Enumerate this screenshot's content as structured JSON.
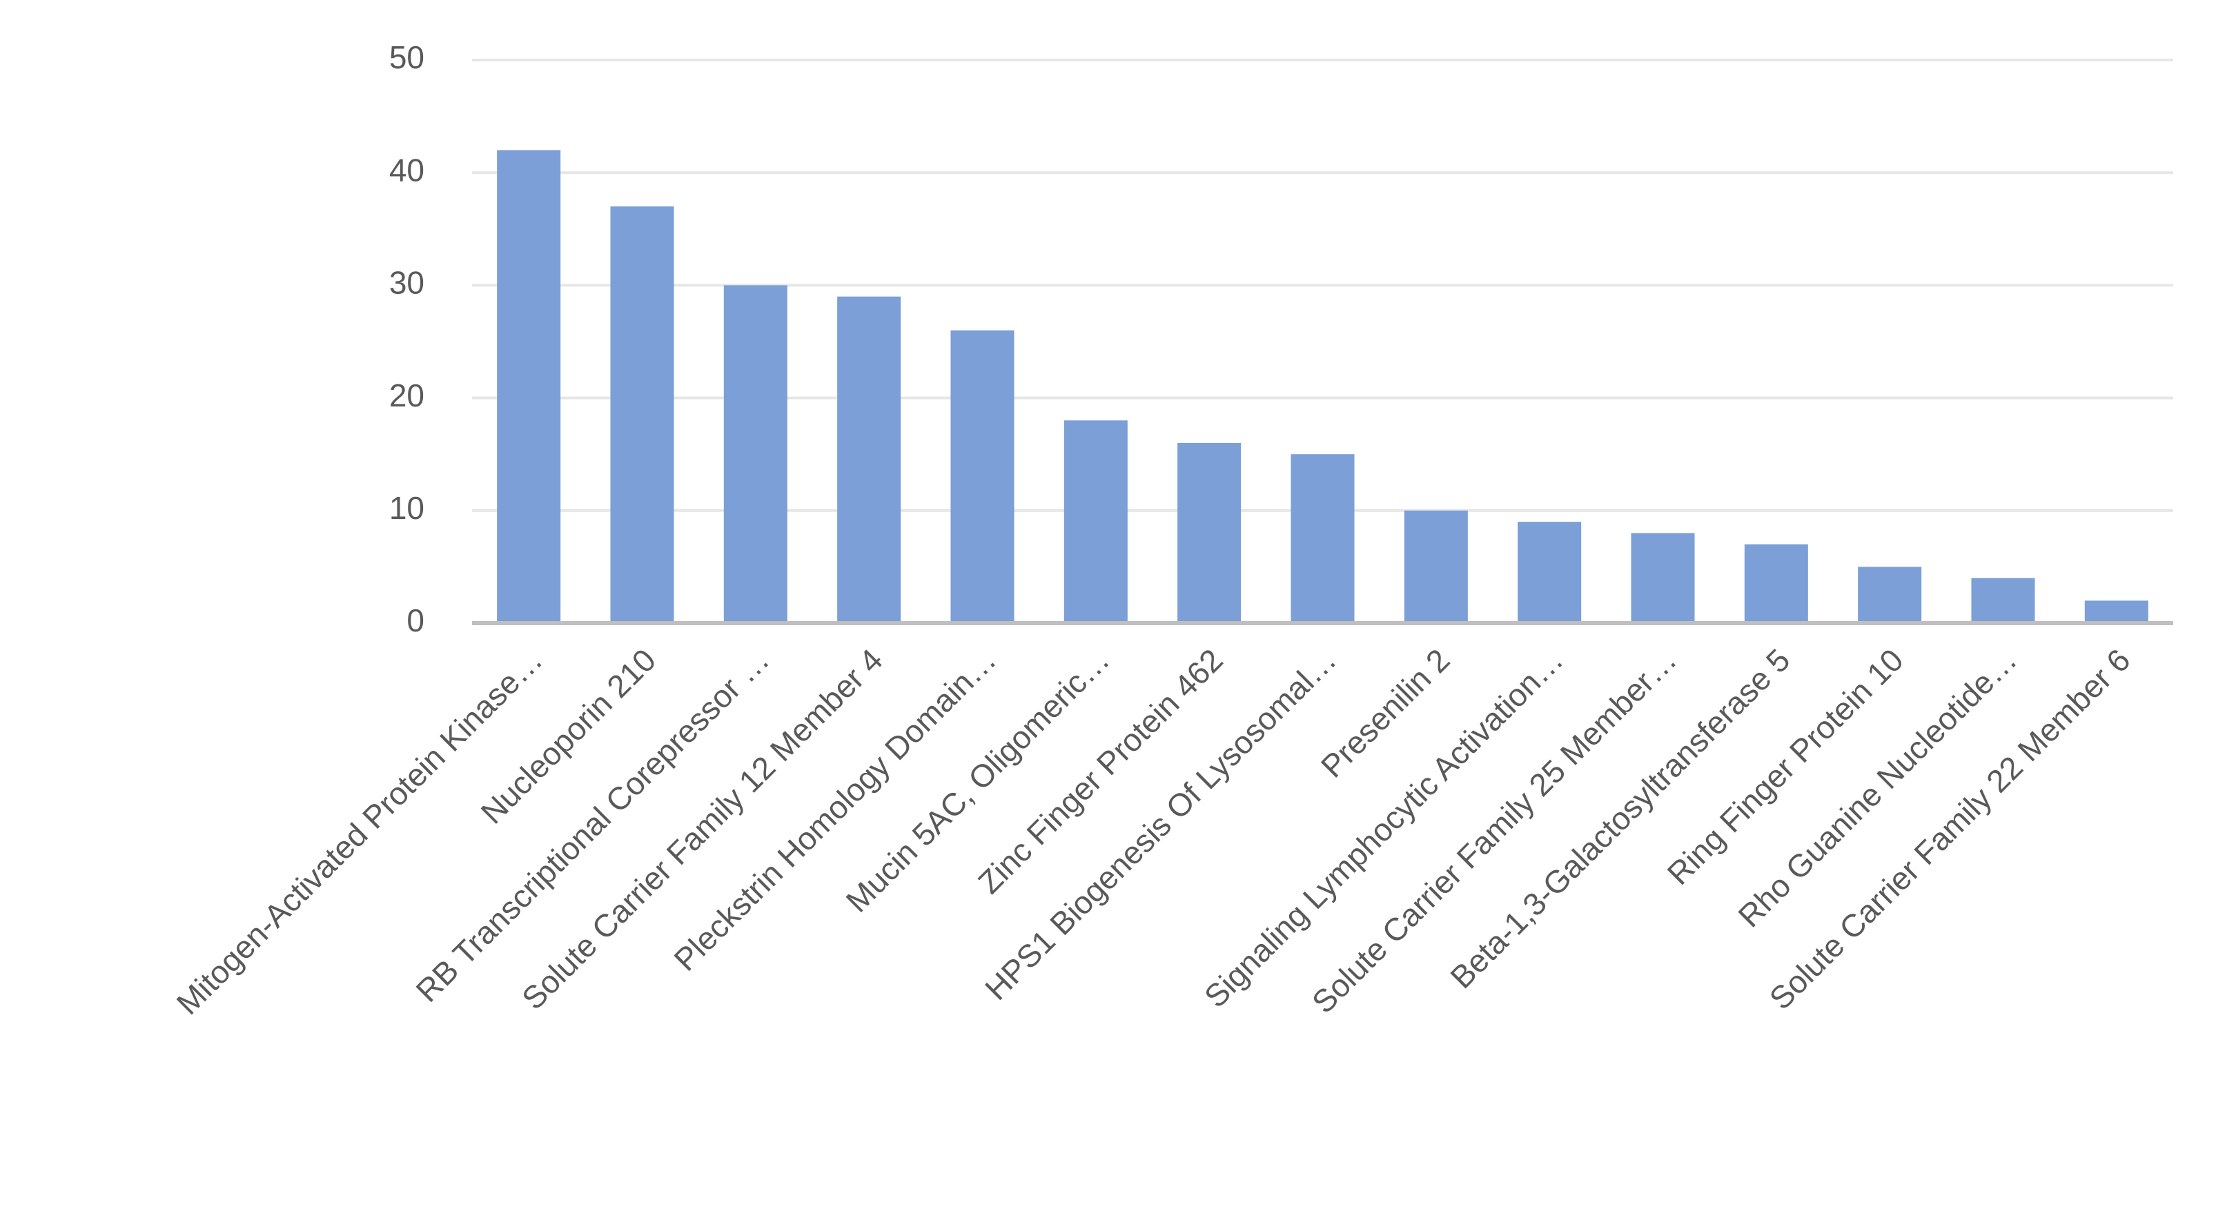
{
  "chart_data": {
    "type": "bar",
    "categories": [
      "Mitogen-Activated Protein Kinase…",
      "Nucleoporin 210",
      "RB Transcriptional Corepressor …",
      "Solute Carrier Family 12 Member 4",
      "Pleckstrin Homology Domain…",
      "Mucin 5AC, Oligomeric…",
      "Zinc Finger Protein 462",
      "HPS1 Biogenesis Of Lysosomal…",
      "Presenilin 2",
      "Signaling Lymphocytic Activation…",
      "Solute Carrier Family 25 Member…",
      "Beta-1,3-Galactosyltransferase 5",
      "Ring Finger Protein 10",
      "Rho Guanine Nucleotide…",
      "Solute Carrier Family 22 Member 6"
    ],
    "values": [
      42,
      37,
      30,
      29,
      26,
      18,
      16,
      15,
      10,
      9,
      8,
      7,
      5,
      4,
      2
    ],
    "color": "#7b9fd6",
    "ylim": [
      0,
      50
    ],
    "yticks": [
      0,
      10,
      20,
      30,
      40,
      50
    ],
    "grid": true
  }
}
